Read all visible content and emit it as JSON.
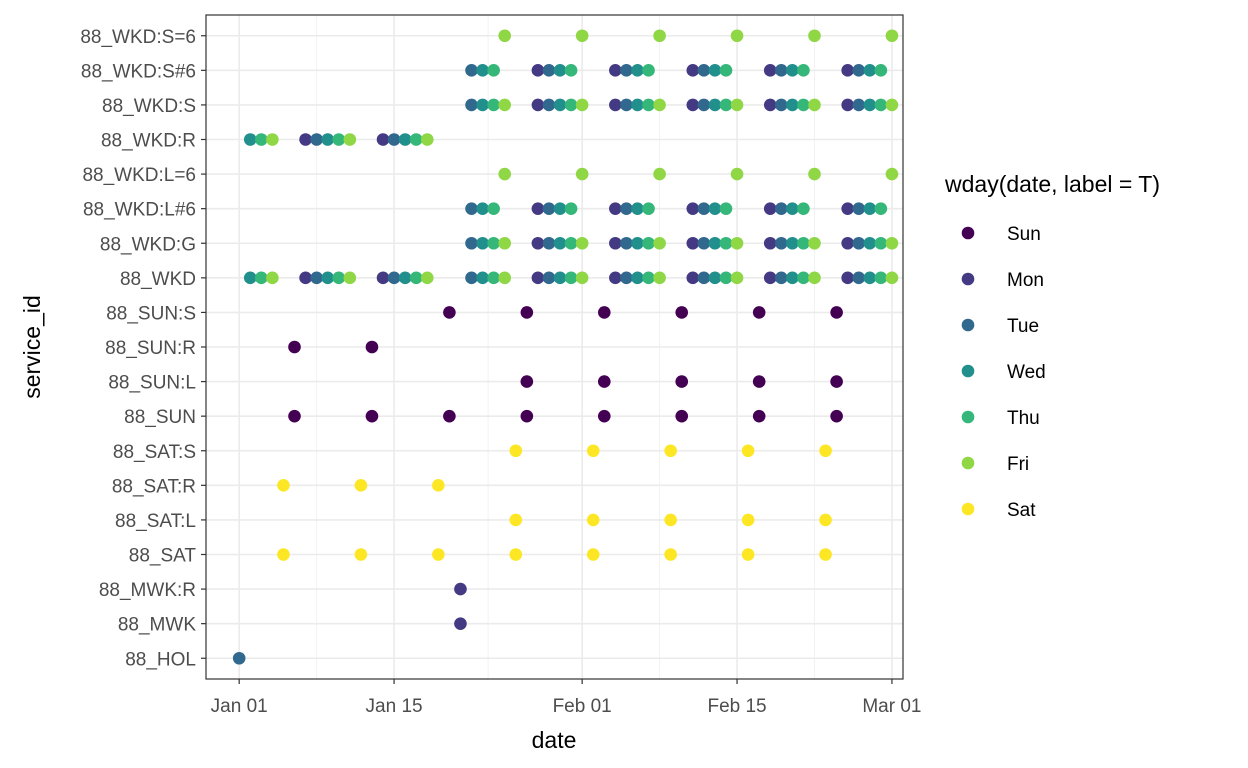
{
  "chart_data": {
    "type": "scatter",
    "xlabel": "date",
    "ylabel": "service_id",
    "x_tick_labels": [
      "Jan 01",
      "Jan 15",
      "Feb 01",
      "Feb 15",
      "Mar 01"
    ],
    "x_tick_dates": [
      "2019-01-01",
      "2019-01-15",
      "2019-02-01",
      "2019-02-15",
      "2019-03-01"
    ],
    "xlim": [
      "2018-12-29",
      "2019-03-02"
    ],
    "grid": true,
    "legend": {
      "title": "wday(date, label = T)",
      "placement": "right",
      "entries": [
        {
          "label": "Sun",
          "color": "#440154"
        },
        {
          "label": "Mon",
          "color": "#443A83"
        },
        {
          "label": "Tue",
          "color": "#31688E"
        },
        {
          "label": "Wed",
          "color": "#21908C"
        },
        {
          "label": "Thu",
          "color": "#35B779"
        },
        {
          "label": "Fri",
          "color": "#8FD744"
        },
        {
          "label": "Sat",
          "color": "#FDE725"
        }
      ]
    },
    "categories": [
      "88_HOL",
      "88_MWK",
      "88_MWK:R",
      "88_SAT",
      "88_SAT:L",
      "88_SAT:R",
      "88_SAT:S",
      "88_SUN",
      "88_SUN:L",
      "88_SUN:R",
      "88_SUN:S",
      "88_WKD",
      "88_WKD:G",
      "88_WKD:L#6",
      "88_WKD:L=6",
      "88_WKD:R",
      "88_WKD:S",
      "88_WKD:S#6",
      "88_WKD:S=6"
    ],
    "series": [
      {
        "service_id": "88_HOL",
        "dates": [
          "2019-01-01"
        ]
      },
      {
        "service_id": "88_MWK",
        "dates": [
          "2019-01-21"
        ]
      },
      {
        "service_id": "88_MWK:R",
        "dates": [
          "2019-01-21"
        ]
      },
      {
        "service_id": "88_SAT",
        "dates": [
          "2019-01-05",
          "2019-01-12",
          "2019-01-19",
          "2019-01-26",
          "2019-02-02",
          "2019-02-09",
          "2019-02-16",
          "2019-02-23"
        ]
      },
      {
        "service_id": "88_SAT:L",
        "dates": [
          "2019-01-26",
          "2019-02-02",
          "2019-02-09",
          "2019-02-16",
          "2019-02-23"
        ]
      },
      {
        "service_id": "88_SAT:R",
        "dates": [
          "2019-01-05",
          "2019-01-12",
          "2019-01-19"
        ]
      },
      {
        "service_id": "88_SAT:S",
        "dates": [
          "2019-01-26",
          "2019-02-02",
          "2019-02-09",
          "2019-02-16",
          "2019-02-23"
        ]
      },
      {
        "service_id": "88_SUN",
        "dates": [
          "2019-01-06",
          "2019-01-13",
          "2019-01-20",
          "2019-01-27",
          "2019-02-03",
          "2019-02-10",
          "2019-02-17",
          "2019-02-24"
        ]
      },
      {
        "service_id": "88_SUN:L",
        "dates": [
          "2019-01-27",
          "2019-02-03",
          "2019-02-10",
          "2019-02-17",
          "2019-02-24"
        ]
      },
      {
        "service_id": "88_SUN:R",
        "dates": [
          "2019-01-06",
          "2019-01-13"
        ]
      },
      {
        "service_id": "88_SUN:S",
        "dates": [
          "2019-01-20",
          "2019-01-27",
          "2019-02-03",
          "2019-02-10",
          "2019-02-17",
          "2019-02-24"
        ]
      },
      {
        "service_id": "88_WKD",
        "dates": [
          "2019-01-02",
          "2019-01-03",
          "2019-01-04",
          "2019-01-07",
          "2019-01-08",
          "2019-01-09",
          "2019-01-10",
          "2019-01-11",
          "2019-01-14",
          "2019-01-15",
          "2019-01-16",
          "2019-01-17",
          "2019-01-18",
          "2019-01-22",
          "2019-01-23",
          "2019-01-24",
          "2019-01-25",
          "2019-01-28",
          "2019-01-29",
          "2019-01-30",
          "2019-01-31",
          "2019-02-01",
          "2019-02-04",
          "2019-02-05",
          "2019-02-06",
          "2019-02-07",
          "2019-02-08",
          "2019-02-11",
          "2019-02-12",
          "2019-02-13",
          "2019-02-14",
          "2019-02-15",
          "2019-02-18",
          "2019-02-19",
          "2019-02-20",
          "2019-02-21",
          "2019-02-22",
          "2019-02-25",
          "2019-02-26",
          "2019-02-27",
          "2019-02-28",
          "2019-03-01"
        ]
      },
      {
        "service_id": "88_WKD:G",
        "dates": [
          "2019-01-22",
          "2019-01-23",
          "2019-01-24",
          "2019-01-25",
          "2019-01-28",
          "2019-01-29",
          "2019-01-30",
          "2019-01-31",
          "2019-02-01",
          "2019-02-04",
          "2019-02-05",
          "2019-02-06",
          "2019-02-07",
          "2019-02-08",
          "2019-02-11",
          "2019-02-12",
          "2019-02-13",
          "2019-02-14",
          "2019-02-15",
          "2019-02-18",
          "2019-02-19",
          "2019-02-20",
          "2019-02-21",
          "2019-02-22",
          "2019-02-25",
          "2019-02-26",
          "2019-02-27",
          "2019-02-28",
          "2019-03-01"
        ]
      },
      {
        "service_id": "88_WKD:L#6",
        "dates": [
          "2019-01-22",
          "2019-01-23",
          "2019-01-24",
          "2019-01-28",
          "2019-01-29",
          "2019-01-30",
          "2019-01-31",
          "2019-02-04",
          "2019-02-05",
          "2019-02-06",
          "2019-02-07",
          "2019-02-11",
          "2019-02-12",
          "2019-02-13",
          "2019-02-14",
          "2019-02-18",
          "2019-02-19",
          "2019-02-20",
          "2019-02-21",
          "2019-02-25",
          "2019-02-26",
          "2019-02-27",
          "2019-02-28"
        ]
      },
      {
        "service_id": "88_WKD:L=6",
        "dates": [
          "2019-01-25",
          "2019-02-01",
          "2019-02-08",
          "2019-02-15",
          "2019-02-22",
          "2019-03-01"
        ]
      },
      {
        "service_id": "88_WKD:R",
        "dates": [
          "2019-01-02",
          "2019-01-03",
          "2019-01-04",
          "2019-01-07",
          "2019-01-08",
          "2019-01-09",
          "2019-01-10",
          "2019-01-11",
          "2019-01-14",
          "2019-01-15",
          "2019-01-16",
          "2019-01-17",
          "2019-01-18"
        ]
      },
      {
        "service_id": "88_WKD:S",
        "dates": [
          "2019-01-22",
          "2019-01-23",
          "2019-01-24",
          "2019-01-25",
          "2019-01-28",
          "2019-01-29",
          "2019-01-30",
          "2019-01-31",
          "2019-02-01",
          "2019-02-04",
          "2019-02-05",
          "2019-02-06",
          "2019-02-07",
          "2019-02-08",
          "2019-02-11",
          "2019-02-12",
          "2019-02-13",
          "2019-02-14",
          "2019-02-15",
          "2019-02-18",
          "2019-02-19",
          "2019-02-20",
          "2019-02-21",
          "2019-02-22",
          "2019-02-25",
          "2019-02-26",
          "2019-02-27",
          "2019-02-28",
          "2019-03-01"
        ]
      },
      {
        "service_id": "88_WKD:S#6",
        "dates": [
          "2019-01-22",
          "2019-01-23",
          "2019-01-24",
          "2019-01-28",
          "2019-01-29",
          "2019-01-30",
          "2019-01-31",
          "2019-02-04",
          "2019-02-05",
          "2019-02-06",
          "2019-02-07",
          "2019-02-11",
          "2019-02-12",
          "2019-02-13",
          "2019-02-14",
          "2019-02-18",
          "2019-02-19",
          "2019-02-20",
          "2019-02-21",
          "2019-02-25",
          "2019-02-26",
          "2019-02-27",
          "2019-02-28"
        ]
      },
      {
        "service_id": "88_WKD:S=6",
        "dates": [
          "2019-01-25",
          "2019-02-01",
          "2019-02-08",
          "2019-02-15",
          "2019-02-22",
          "2019-03-01"
        ]
      }
    ]
  }
}
